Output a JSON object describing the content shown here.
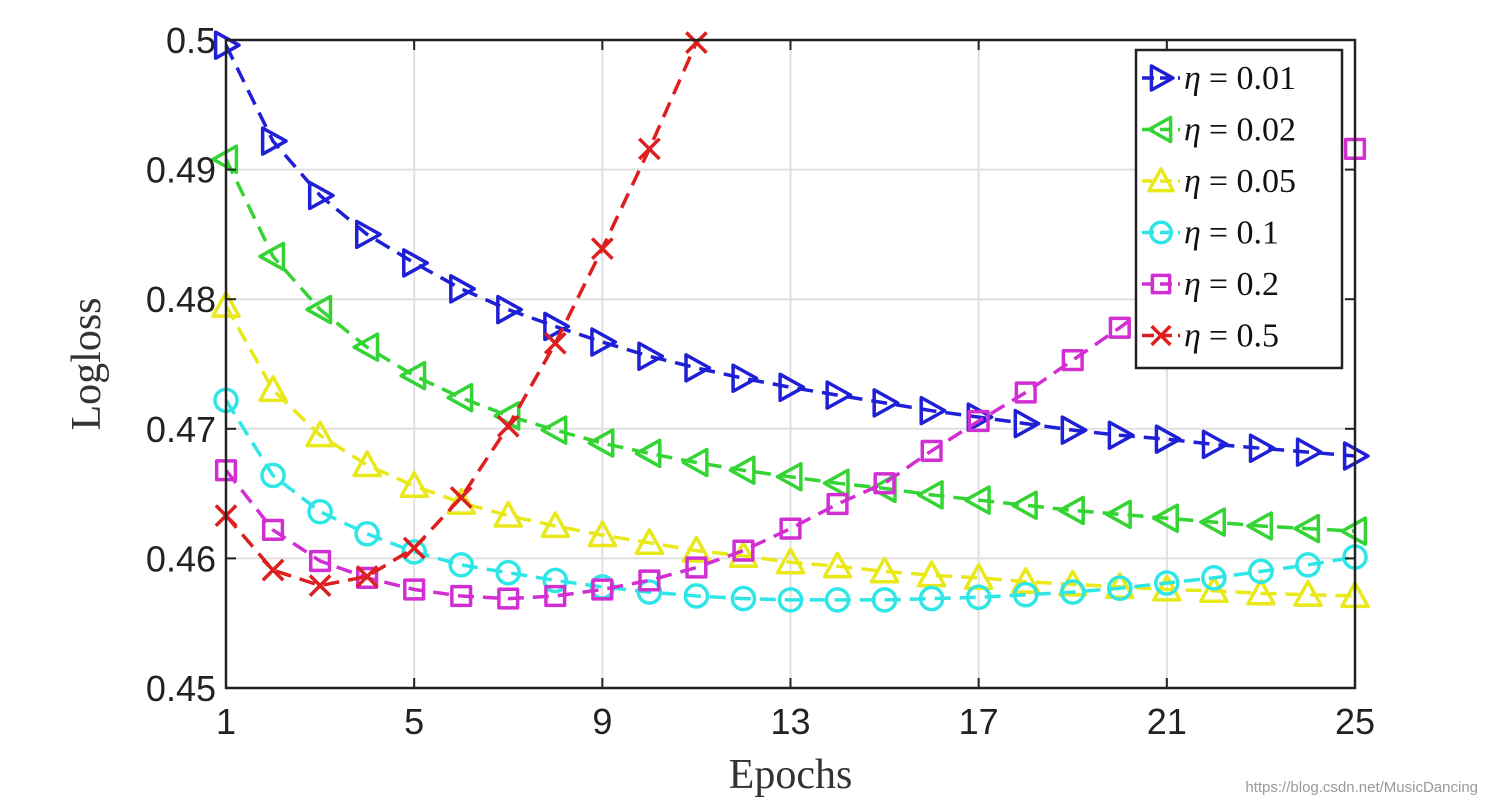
{
  "chart_data": {
    "type": "line",
    "xlabel": "Epochs",
    "ylabel": "Logloss",
    "xlim": [
      1,
      25
    ],
    "ylim": [
      0.45,
      0.5
    ],
    "x_ticks": [
      "1",
      "5",
      "9",
      "13",
      "17",
      "21",
      "25"
    ],
    "y_ticks": [
      "0.45",
      "0.46",
      "0.47",
      "0.48",
      "0.49",
      "0.5"
    ],
    "grid": true,
    "legend_position": "top-right",
    "series": [
      {
        "name": "η = 0.01",
        "label_greek": "η",
        "label_value": "= 0.01",
        "color": "#1f1fd6",
        "marker": "triangle-right",
        "x": [
          1,
          2,
          3,
          4,
          5,
          6,
          7,
          8,
          9,
          10,
          11,
          12,
          13,
          14,
          15,
          16,
          17,
          18,
          19,
          20,
          21,
          22,
          23,
          24,
          25
        ],
        "values": [
          0.4996,
          0.4922,
          0.488,
          0.485,
          0.4828,
          0.4808,
          0.4792,
          0.4779,
          0.4767,
          0.4756,
          0.4747,
          0.4739,
          0.4732,
          0.4726,
          0.472,
          0.4714,
          0.4709,
          0.4704,
          0.4699,
          0.4695,
          0.4692,
          0.4688,
          0.4685,
          0.4682,
          0.4679
        ]
      },
      {
        "name": "η = 0.02",
        "label_greek": "η",
        "label_value": "= 0.02",
        "color": "#33d433",
        "marker": "triangle-left",
        "x": [
          1,
          2,
          3,
          4,
          5,
          6,
          7,
          8,
          9,
          10,
          11,
          12,
          13,
          14,
          15,
          16,
          17,
          18,
          19,
          20,
          21,
          22,
          23,
          24,
          25
        ],
        "values": [
          0.4908,
          0.4833,
          0.4792,
          0.4763,
          0.4741,
          0.4724,
          0.471,
          0.4699,
          0.4689,
          0.4681,
          0.4674,
          0.4668,
          0.4663,
          0.4658,
          0.4654,
          0.4649,
          0.4645,
          0.4641,
          0.4637,
          0.4634,
          0.4631,
          0.4628,
          0.4625,
          0.4623,
          0.4621
        ]
      },
      {
        "name": "η = 0.05",
        "label_greek": "η",
        "label_value": "= 0.05",
        "color": "#e8e81a",
        "marker": "triangle-up",
        "x": [
          1,
          2,
          3,
          4,
          5,
          6,
          7,
          8,
          9,
          10,
          11,
          12,
          13,
          14,
          15,
          16,
          17,
          18,
          19,
          20,
          21,
          22,
          23,
          24,
          25
        ],
        "values": [
          0.4795,
          0.473,
          0.4695,
          0.4672,
          0.4656,
          0.4643,
          0.4633,
          0.4625,
          0.4618,
          0.4612,
          0.4606,
          0.4602,
          0.4597,
          0.4594,
          0.459,
          0.4587,
          0.4585,
          0.4582,
          0.458,
          0.4578,
          0.4576,
          0.4575,
          0.4573,
          0.4572,
          0.4571
        ]
      },
      {
        "name": "η = 0.1",
        "label_greek": "η",
        "label_value": "= 0.1",
        "color": "#2ee6e6",
        "marker": "circle",
        "x": [
          1,
          2,
          3,
          4,
          5,
          6,
          7,
          8,
          9,
          10,
          11,
          12,
          13,
          14,
          15,
          16,
          17,
          18,
          19,
          20,
          21,
          22,
          23,
          24,
          25
        ],
        "values": [
          0.4722,
          0.4664,
          0.4636,
          0.4619,
          0.4605,
          0.4595,
          0.4589,
          0.4583,
          0.4578,
          0.4574,
          0.4571,
          0.4569,
          0.4568,
          0.4568,
          0.4568,
          0.4569,
          0.457,
          0.4572,
          0.4574,
          0.4577,
          0.4581,
          0.4585,
          0.459,
          0.4595,
          0.4601
        ]
      },
      {
        "name": "η = 0.2",
        "label_greek": "η",
        "label_value": "= 0.2",
        "color": "#d22fd2",
        "marker": "square",
        "x": [
          1,
          2,
          3,
          4,
          5,
          6,
          7,
          8,
          9,
          10,
          11,
          12,
          13,
          14,
          15,
          16,
          17,
          18,
          19,
          20,
          21
        ],
        "values": [
          0.4668,
          0.4622,
          0.4598,
          0.4585,
          0.4576,
          0.4571,
          0.4569,
          0.4571,
          0.4576,
          0.4583,
          0.4593,
          0.4606,
          0.4623,
          0.4642,
          0.4658,
          0.4683,
          0.4706,
          0.4728,
          0.4753,
          0.4778,
          0.4805
        ]
      },
      {
        "name": "η = 0.5",
        "label_greek": "η",
        "label_value": "= 0.5",
        "color": "#dd1f1f",
        "marker": "x",
        "x": [
          1,
          2,
          3,
          4,
          5,
          6,
          7,
          8,
          9,
          10,
          11
        ],
        "values": [
          0.4633,
          0.4591,
          0.4579,
          0.4586,
          0.4608,
          0.4647,
          0.4702,
          0.4766,
          0.4839,
          0.4916,
          0.4998
        ]
      }
    ],
    "extra_points": [
      {
        "series": "η = 0.2",
        "x": 25,
        "y": 0.4916
      }
    ]
  },
  "watermark": "https://blog.csdn.net/MusicDancing"
}
